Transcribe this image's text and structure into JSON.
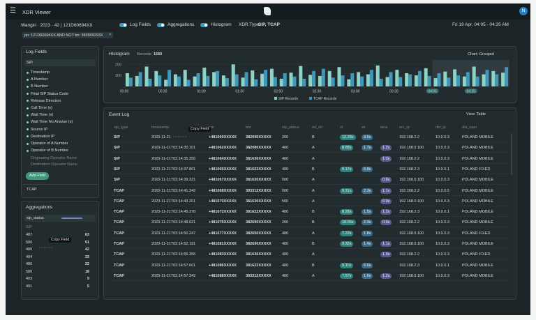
{
  "header": {
    "title": "XDR Viewer",
    "avatar": "N"
  },
  "toolbar": {
    "context": "Wangiri · 2023 · 42 | 121D60694XX",
    "toggles": [
      "Log Fields",
      "Aggregations",
      "Histogram"
    ],
    "xdr_type_label": "XDR Type:",
    "xdr_type": "SIP, TCAP",
    "time_range": "Fri 19 Apr, 04:05 - 04:35 AM"
  },
  "filter": "pn: 121D60694XX AND NOT bn: 382809293X",
  "tooltip": "Copy Field",
  "log_fields": {
    "title": "Log Fields",
    "group": "SIP",
    "fields": [
      "Timestamp",
      "A Number",
      "B Number",
      "Final SIP Status Code",
      "Release Direction",
      "Call Time (s)",
      "Wait Time (s)",
      "Wait Time No Answer (s)",
      "Source IP",
      "Destination IP",
      "Operator of A Number",
      "Operator of B Number"
    ],
    "inactive_fields": [
      "Originating Operator Name",
      "Destination Operator Name"
    ],
    "add_button": "Add Field",
    "collapsed_group": "TCAP"
  },
  "aggregations": {
    "title": "Aggregations",
    "field": "sip_status",
    "group": "SIP",
    "rows": [
      [
        "487",
        63
      ],
      [
        "500",
        51
      ],
      [
        "480",
        42
      ],
      [
        "404",
        33
      ],
      [
        "486",
        22
      ],
      [
        "580",
        18
      ],
      [
        "403",
        9
      ],
      [
        "491",
        5
      ]
    ]
  },
  "chart_data": {
    "type": "bar",
    "title": "Histogram",
    "records_label": "Records:",
    "records": 1560,
    "mode": "Chart: Grouped",
    "categories": [
      "00:00",
      null,
      null,
      null,
      "00:30",
      null,
      null,
      null,
      "01:00",
      null,
      null,
      null,
      "01:30",
      null,
      null,
      null,
      "02:00",
      null,
      null,
      null,
      "02:30",
      null,
      null,
      null,
      "03:00",
      null,
      null,
      null,
      "03:30",
      null,
      null,
      null,
      "04:05",
      null,
      null,
      null,
      "04:35",
      null,
      null,
      null
    ],
    "series": [
      {
        "name": "SIP Records",
        "color": "#8fd3c7",
        "values": [
          120,
          95,
          180,
          140,
          60,
          110,
          150,
          90,
          170,
          130,
          100,
          200,
          80,
          145,
          115,
          160,
          70,
          125,
          185,
          105,
          95,
          140,
          175,
          65,
          130,
          110,
          190,
          85,
          150,
          120,
          100,
          165,
          75,
          135,
          155,
          90,
          180,
          110,
          140,
          125
        ]
      },
      {
        "name": "TCAP Records",
        "color": "#3f97b9",
        "values": [
          80,
          130,
          70,
          100,
          150,
          90,
          60,
          120,
          95,
          140,
          75,
          110,
          130,
          65,
          150,
          85,
          120,
          90,
          70,
          140,
          160,
          80,
          100,
          120,
          90,
          150,
          70,
          130,
          85,
          110,
          140,
          95,
          120,
          80,
          100,
          130,
          90,
          150,
          110,
          175
        ]
      }
    ],
    "ylim": [
      0,
      240
    ],
    "yticks": [
      100,
      200
    ]
  },
  "event_log": {
    "title": "Event Log",
    "view": "View: Table",
    "columns": [
      "sip_type",
      "timestamp",
      "anr",
      "bnr",
      "sip_status",
      "rel_dir",
      "ct",
      "wt",
      "wna",
      "src_ip",
      "dst_ip",
      "dst_oper"
    ],
    "rows": [
      [
        "SIP",
        "2023-11-21",
        "+481060XXXXX",
        "382090XXXXX",
        "200",
        "B",
        "12.28s",
        "3.5s",
        null,
        "192.168.2.2",
        "10.0.0.3",
        "POLAND MOBILE"
      ],
      [
        "SIP",
        "2023-11-21T03:14:30.101",
        "+481062XXXXX",
        "382080XXXXX",
        "480",
        "A",
        "8.88s",
        "1.7s",
        "1.2s",
        "192.168.0.100",
        "10.0.0.3",
        "POLAND MOBILE"
      ],
      [
        "SIP",
        "2023-11-21T03:14:35.356",
        "+481064XXXXX",
        "381636XXXXX",
        "480",
        "A",
        null,
        null,
        "1.0s",
        "192.168.2.2",
        "10.0.0.3",
        "POLAND MOBILE"
      ],
      [
        "SIP",
        "2023-11-21T03:14:37.801",
        "+481065XXXXX",
        "381623XXXXX",
        "480",
        "B",
        "9.17s",
        "6.8s",
        null,
        "192.168.2.3",
        "10.0.0.1",
        "POLAND FIXED"
      ],
      [
        "SIP",
        "2023-11-21T03:14:39.321",
        "+481067XXXXX",
        "381630XXXXX",
        "500",
        "A",
        null,
        null,
        "0.8s",
        "192.168.0.100",
        "10.0.0.3",
        "POLAND MOBILE"
      ],
      [
        "TCAP",
        "2023-11-21T03:14:41.342",
        "+481068XXXXX",
        "393312XXXXX",
        "500",
        "A",
        "9.31s",
        "2.3s",
        "1.1s",
        "192.168.2.2",
        "10.0.0.5",
        "POLAND MOBILE"
      ],
      [
        "TCAP",
        "2023-11-21T03:14:43.201",
        "+481070XXXXX",
        "381630XXXXX",
        "500",
        "A",
        null,
        null,
        "0.9s",
        "192.168.0.100",
        "10.0.0.3",
        "POLAND MOBILE"
      ],
      [
        "TCAP",
        "2023-11-21T03:14:45.378",
        "+481072XXXXX",
        "381622XXXXX",
        "480",
        "B",
        "8.28s",
        "1.5s",
        "1.2s",
        "192.168.2.3",
        "10.0.0.1",
        "POLAND MOBILE"
      ],
      [
        "TCAP",
        "2023-11-21T03:14:48.621",
        "+481075XXXXX",
        "382690XXXXX",
        "200",
        "B",
        "10.05s",
        "2.3s",
        "0.9s",
        "192.168.2.2",
        "10.0.0.3",
        "POLAND MOBILE"
      ],
      [
        "TCAP",
        "2023-11-21T03:14:50.247",
        "+481077XXXXX",
        "382650XXXXX",
        "480",
        "A",
        "7.22s",
        "1.8s",
        null,
        "192.168.0.100",
        "10.0.0.3",
        "POLAND FIXED"
      ],
      [
        "TCAP",
        "2023-11-21T03:14:52.191",
        "+481081XXXXX",
        "382690XXXXX",
        "480",
        "B",
        "9.32s",
        "1.4s",
        "1.1s",
        "192.168.0.100",
        "10.0.0.3",
        "POLAND MOBILE"
      ],
      [
        "TCAP",
        "2023-11-21T03:14:55.356",
        "+481083XXXXX",
        "381636XXXXX",
        "480",
        "A",
        null,
        null,
        "1.3s",
        "192.168.2.2",
        "10.0.0.3",
        "POLAND FIXED"
      ],
      [
        "TCAP",
        "2023-11-21T03:14:57.601",
        "+481086XXXXX",
        "381622XXXXX",
        "480",
        "B",
        "9.11s",
        "6.6s",
        null,
        "192.168.2.3",
        "10.0.0.1",
        "POLAND MOBILE"
      ],
      [
        "TCAP",
        "2023-11-21T03:14:57.342",
        "+481088XXXXX",
        "393312XXXXX",
        "480",
        "A",
        "7.57s",
        "1.6s",
        "1.2s",
        "192.168.0.100",
        "10.0.0.3",
        "POLAND MOBILE"
      ]
    ]
  }
}
